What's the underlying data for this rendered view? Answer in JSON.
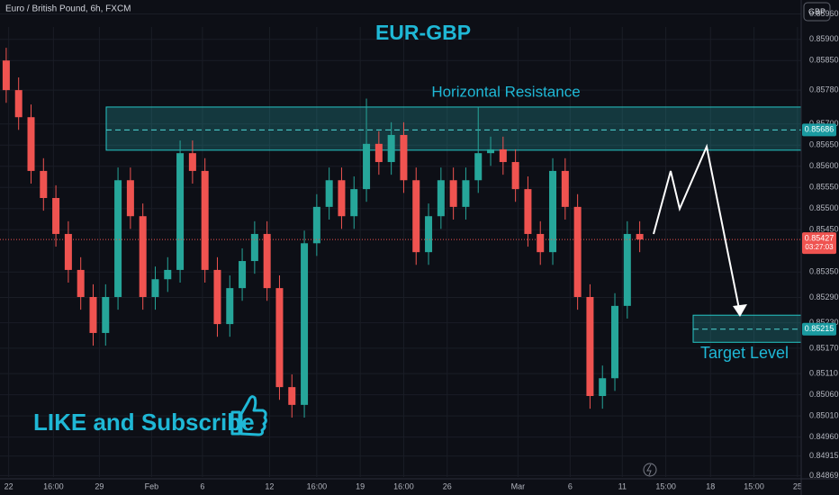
{
  "chart_data": {
    "type": "candlestick",
    "symbol": "Euro / British Pound, 6h, FXCM",
    "currency": "GBP",
    "title": "EUR-GBP",
    "annotation": "LIKE and Subscribe",
    "up_color": "#26a69a",
    "down_color": "#ef5350",
    "ylim": [
      0.84823,
      0.85993
    ],
    "xlim": [
      -0.5,
      64
    ],
    "yticks": [
      {
        "value": 0.8596,
        "label": "0.85960"
      },
      {
        "value": 0.859,
        "label": "0.85900"
      },
      {
        "value": 0.8585,
        "label": "0.85850"
      },
      {
        "value": 0.8578,
        "label": "0.85780"
      },
      {
        "value": 0.857,
        "label": "0.85700"
      },
      {
        "value": 0.8565,
        "label": "0.85650"
      },
      {
        "value": 0.856,
        "label": "0.85600"
      },
      {
        "value": 0.8555,
        "label": "0.85550"
      },
      {
        "value": 0.855,
        "label": "0.85500"
      },
      {
        "value": 0.8545,
        "label": "0.85450"
      },
      {
        "value": 0.8535,
        "label": "0.85350"
      },
      {
        "value": 0.8529,
        "label": "0.85290"
      },
      {
        "value": 0.8523,
        "label": "0.85230"
      },
      {
        "value": 0.8517,
        "label": "0.85170"
      },
      {
        "value": 0.8511,
        "label": "0.85110"
      },
      {
        "value": 0.8506,
        "label": "0.85060"
      },
      {
        "value": 0.8501,
        "label": "0.85010"
      },
      {
        "value": 0.8496,
        "label": "0.84960"
      },
      {
        "value": 0.84915,
        "label": "0.84915"
      },
      {
        "value": 0.84869,
        "label": "0.84869"
      }
    ],
    "xticks": [
      {
        "value": 0.2,
        "label": "22"
      },
      {
        "value": 3.8,
        "label": "16:00"
      },
      {
        "value": 7.5,
        "label": "29"
      },
      {
        "value": 11.7,
        "label": "Feb"
      },
      {
        "value": 15.8,
        "label": "6"
      },
      {
        "value": 21.2,
        "label": "12"
      },
      {
        "value": 25.0,
        "label": "16:00"
      },
      {
        "value": 28.5,
        "label": "19"
      },
      {
        "value": 32.0,
        "label": "16:00"
      },
      {
        "value": 35.5,
        "label": "26"
      },
      {
        "value": 41.2,
        "label": "Mar"
      },
      {
        "value": 45.4,
        "label": "6"
      },
      {
        "value": 49.6,
        "label": "11"
      },
      {
        "value": 53.1,
        "label": "15:00"
      },
      {
        "value": 56.7,
        "label": "18"
      },
      {
        "value": 60.2,
        "label": "15:00"
      },
      {
        "value": 63.7,
        "label": "25"
      }
    ],
    "candles": [
      [
        0.8585,
        0.8588,
        0.8575,
        0.8578
      ],
      [
        0.8578,
        0.8581,
        0.85686,
        0.85716
      ],
      [
        0.85716,
        0.85746,
        0.85559,
        0.85589
      ],
      [
        0.85589,
        0.85619,
        0.85495,
        0.85525
      ],
      [
        0.85525,
        0.85555,
        0.8541,
        0.8544
      ],
      [
        0.8544,
        0.8547,
        0.85325,
        0.85355
      ],
      [
        0.85355,
        0.85385,
        0.85261,
        0.85291
      ],
      [
        0.85291,
        0.85321,
        0.85176,
        0.85206
      ],
      [
        0.85206,
        0.85321,
        0.85176,
        0.85291
      ],
      [
        0.85291,
        0.85597,
        0.85261,
        0.85567
      ],
      [
        0.85567,
        0.85597,
        0.85452,
        0.85482
      ],
      [
        0.85482,
        0.85512,
        0.85261,
        0.85291
      ],
      [
        0.85291,
        0.85363,
        0.85261,
        0.85333
      ],
      [
        0.85333,
        0.85385,
        0.85303,
        0.85355
      ],
      [
        0.85355,
        0.85661,
        0.85325,
        0.85631
      ],
      [
        0.85631,
        0.85661,
        0.85559,
        0.85589
      ],
      [
        0.85589,
        0.85619,
        0.85325,
        0.85355
      ],
      [
        0.85355,
        0.85385,
        0.85197,
        0.85227
      ],
      [
        0.85227,
        0.85342,
        0.85197,
        0.85312
      ],
      [
        0.85312,
        0.85406,
        0.85282,
        0.85376
      ],
      [
        0.85376,
        0.8547,
        0.85346,
        0.8544
      ],
      [
        0.8544,
        0.8547,
        0.85282,
        0.85312
      ],
      [
        0.85312,
        0.85342,
        0.85048,
        0.85078
      ],
      [
        0.85078,
        0.85108,
        0.85006,
        0.85036
      ],
      [
        0.85036,
        0.85448,
        0.85006,
        0.85418
      ],
      [
        0.85418,
        0.85534,
        0.85388,
        0.85504
      ],
      [
        0.85504,
        0.85597,
        0.85474,
        0.85567
      ],
      [
        0.85567,
        0.85597,
        0.85452,
        0.85482
      ],
      [
        0.85482,
        0.85576,
        0.85452,
        0.85546
      ],
      [
        0.85546,
        0.8576,
        0.85516,
        0.85653
      ],
      [
        0.85653,
        0.85683,
        0.8558,
        0.8561
      ],
      [
        0.8561,
        0.85704,
        0.8558,
        0.85674
      ],
      [
        0.85674,
        0.85704,
        0.85537,
        0.85567
      ],
      [
        0.85567,
        0.85597,
        0.85367,
        0.85397
      ],
      [
        0.85397,
        0.85512,
        0.85367,
        0.85482
      ],
      [
        0.85482,
        0.85597,
        0.85452,
        0.85567
      ],
      [
        0.85567,
        0.85597,
        0.85474,
        0.85504
      ],
      [
        0.85504,
        0.85597,
        0.85474,
        0.85567
      ],
      [
        0.85567,
        0.8574,
        0.85537,
        0.85631
      ],
      [
        0.85631,
        0.8567,
        0.85601,
        0.8564
      ],
      [
        0.8564,
        0.8567,
        0.8558,
        0.8561
      ],
      [
        0.8561,
        0.8564,
        0.85516,
        0.85546
      ],
      [
        0.85546,
        0.85576,
        0.8541,
        0.8544
      ],
      [
        0.8544,
        0.8547,
        0.85367,
        0.85397
      ],
      [
        0.85397,
        0.85619,
        0.85367,
        0.85589
      ],
      [
        0.85589,
        0.85619,
        0.85474,
        0.85504
      ],
      [
        0.85504,
        0.85534,
        0.85261,
        0.85291
      ],
      [
        0.85291,
        0.85321,
        0.85027,
        0.85057
      ],
      [
        0.85057,
        0.85129,
        0.85027,
        0.85099
      ],
      [
        0.85099,
        0.853,
        0.85069,
        0.8527
      ],
      [
        0.8527,
        0.8547,
        0.8524,
        0.8544
      ],
      [
        0.8544,
        0.8547,
        0.85397,
        0.85427
      ]
    ],
    "zones": [
      {
        "label": "Horizontal Resistance",
        "top": 0.8574,
        "bottom": 0.85638,
        "level": 0.85686
      },
      {
        "label": "Target Level",
        "top": 0.85248,
        "bottom": 0.85184,
        "level": 0.85215
      }
    ],
    "last_price": 0.85427,
    "countdown": "03:27:03"
  }
}
